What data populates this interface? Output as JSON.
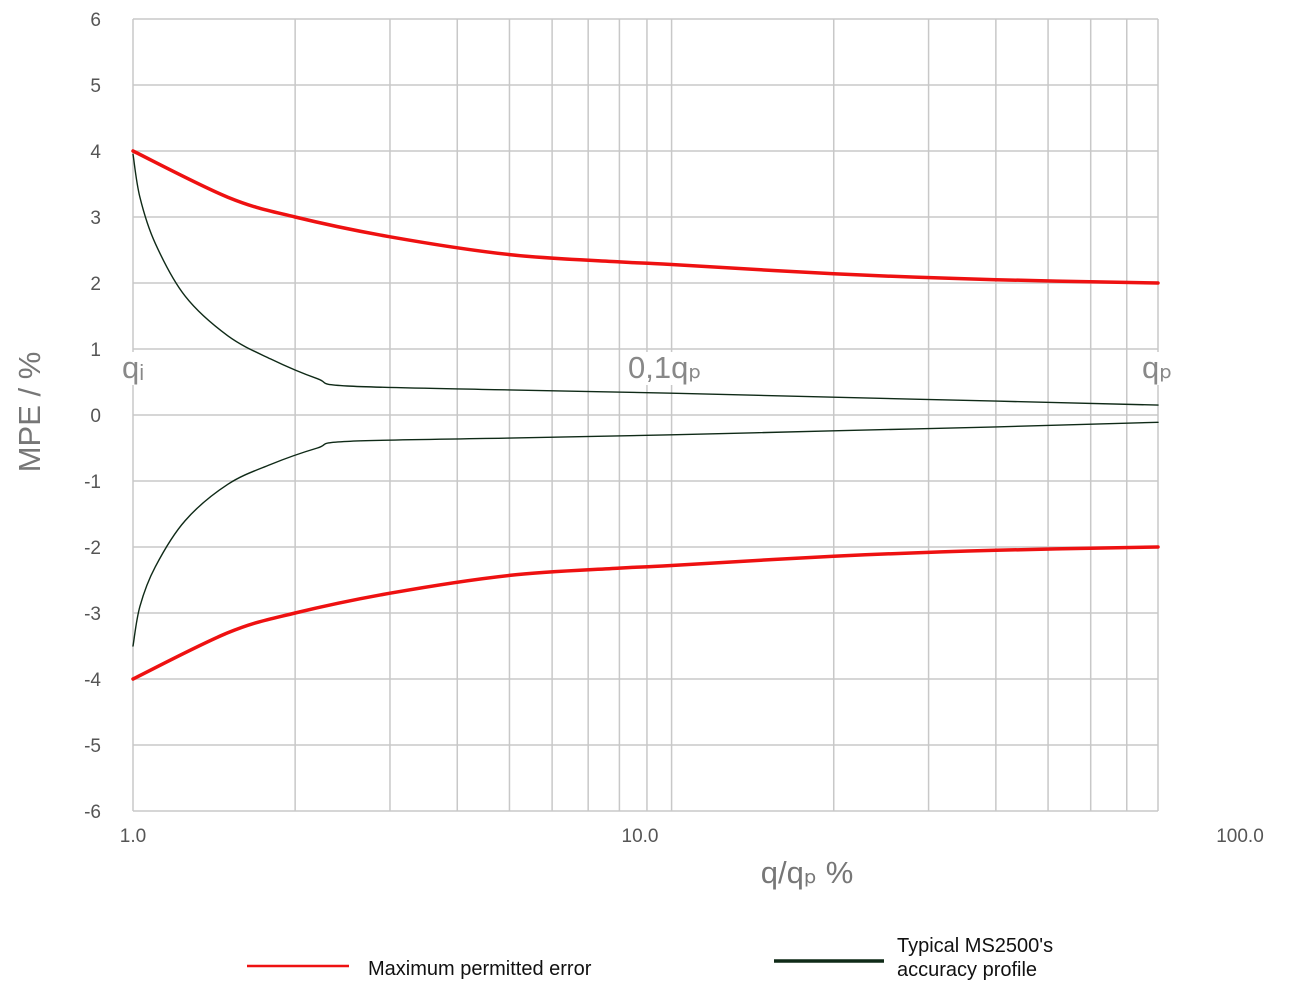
{
  "chart_data": {
    "type": "line",
    "xlabel": "q/qₚ  %",
    "ylabel": "MPE / %",
    "x_scale": "log",
    "xlim": [
      1.0,
      100.0
    ],
    "ylim": [
      -6,
      6
    ],
    "xticks": [
      "1.0",
      "10.0",
      "100.0"
    ],
    "yticks": [
      "6",
      "5",
      "4",
      "3",
      "2",
      "1",
      "0",
      "-1",
      "-2",
      "-3",
      "-4",
      "-5",
      "-6"
    ],
    "grid": true,
    "annotations": [
      {
        "text": "qᵢ",
        "x": 1.0,
        "y": 0.7
      },
      {
        "text": "0,1qₚ",
        "x": 10.0,
        "y": 0.7
      },
      {
        "text": "qₚ",
        "x": 80.0,
        "y": 0.7
      }
    ],
    "series": [
      {
        "name": "Maximum permitted error",
        "color": "#ee1111",
        "x": [
          1.0,
          1.5,
          2.0,
          3.0,
          5.0,
          8.0,
          10.0,
          20.0,
          40.0,
          80.0
        ],
        "y": [
          4.0,
          3.3,
          3.0,
          2.7,
          2.43,
          2.32,
          2.28,
          2.14,
          2.05,
          2.0
        ]
      },
      {
        "name": "Maximum permitted error",
        "color": "#ee1111",
        "x": [
          1.0,
          1.5,
          2.0,
          3.0,
          5.0,
          8.0,
          10.0,
          20.0,
          40.0,
          80.0
        ],
        "y": [
          -4.0,
          -3.3,
          -3.0,
          -2.7,
          -2.43,
          -2.32,
          -2.28,
          -2.14,
          -2.05,
          -2.0
        ]
      },
      {
        "name": "Typical MS2500's accuracy profile",
        "color": "#0f2a17",
        "x": [
          1.0,
          1.03,
          1.1,
          1.25,
          1.5,
          1.8,
          2.2,
          2.5,
          5.0,
          10.0,
          20.0,
          40.0,
          80.0
        ],
        "y": [
          3.95,
          3.3,
          2.6,
          1.8,
          1.2,
          0.85,
          0.55,
          0.44,
          0.38,
          0.33,
          0.27,
          0.21,
          0.15
        ]
      },
      {
        "name": "Typical MS2500's accuracy profile",
        "color": "#0f2a17",
        "x": [
          1.0,
          1.03,
          1.1,
          1.25,
          1.5,
          1.8,
          2.2,
          2.5,
          5.0,
          10.0,
          20.0,
          40.0,
          80.0
        ],
        "y": [
          -3.5,
          -2.9,
          -2.3,
          -1.6,
          -1.05,
          -0.75,
          -0.5,
          -0.4,
          -0.35,
          -0.3,
          -0.24,
          -0.18,
          -0.11
        ]
      }
    ],
    "legend": [
      {
        "label": "Maximum permitted error",
        "color": "#ee1111"
      },
      {
        "label": "Typical MS2500's accuracy profile",
        "color": "#0f2a17"
      }
    ]
  }
}
